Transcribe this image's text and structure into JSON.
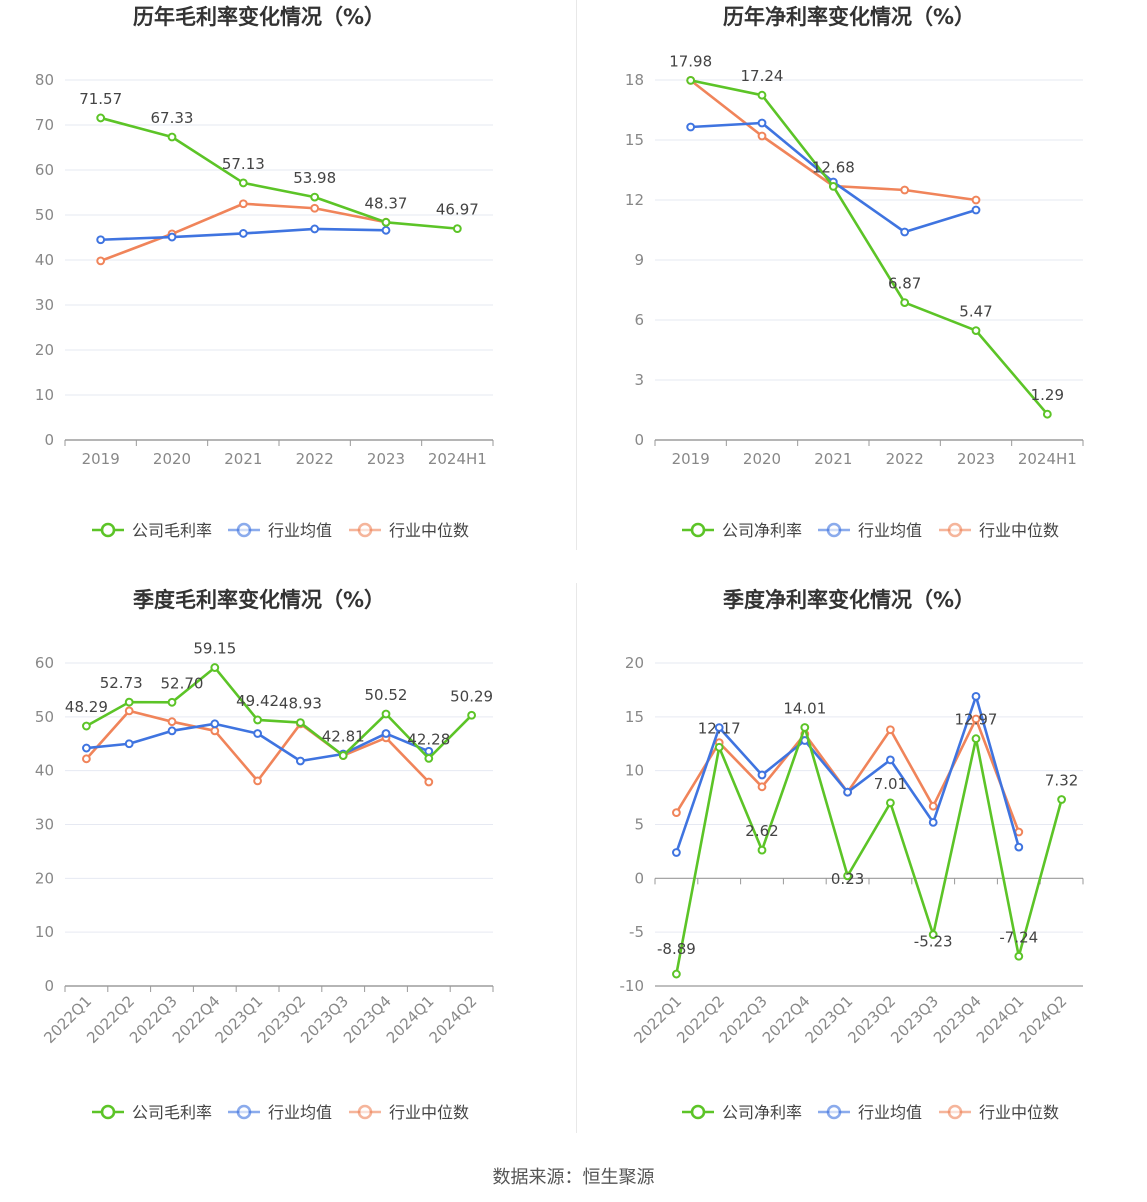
{
  "colors": {
    "company": "#5cc427",
    "avg": "#3f74e0",
    "median": "#f0845a",
    "grid": "#e6e9f2",
    "axis": "#888888",
    "label": "#444444"
  },
  "source_text": "数据来源：恒生聚源",
  "charts": [
    {
      "type": "line",
      "title": "历年毛利率变化情况（%）",
      "categories": [
        "2019",
        "2020",
        "2021",
        "2022",
        "2023",
        "2024H1"
      ],
      "ylim": [
        0,
        80
      ],
      "yticks": [
        "0",
        "10",
        "20",
        "30",
        "40",
        "50",
        "60",
        "70",
        "80"
      ],
      "rotate_x": false,
      "zero_ticks": false,
      "series": [
        {
          "name": "公司毛利率",
          "color": "#5cc427",
          "labels": true,
          "values": [
            71.57,
            67.33,
            57.13,
            53.98,
            48.37,
            46.97
          ]
        },
        {
          "name": "行业均值",
          "color": "#3f74e0",
          "labels": false,
          "values": [
            44.5,
            45.1,
            45.9,
            46.9,
            46.6,
            null
          ]
        },
        {
          "name": "行业中位数",
          "color": "#f0845a",
          "labels": false,
          "values": [
            39.8,
            45.8,
            52.5,
            51.5,
            48.4,
            null
          ]
        }
      ],
      "value_labels": [
        "71.57",
        "67.33",
        "57.13",
        "53.98",
        "48.37",
        "46.97"
      ]
    },
    {
      "type": "line",
      "title": "历年净利率变化情况（%）",
      "categories": [
        "2019",
        "2020",
        "2021",
        "2022",
        "2023",
        "2024H1"
      ],
      "ylim": [
        0,
        18
      ],
      "yticks": [
        "0",
        "3",
        "6",
        "9",
        "12",
        "15",
        "18"
      ],
      "rotate_x": false,
      "zero_ticks": false,
      "series": [
        {
          "name": "公司净利率",
          "color": "#5cc427",
          "labels": true,
          "values": [
            17.98,
            17.24,
            12.68,
            6.87,
            5.47,
            1.29
          ]
        },
        {
          "name": "行业均值",
          "color": "#3f74e0",
          "labels": false,
          "values": [
            15.65,
            15.85,
            12.9,
            10.4,
            11.5,
            null
          ]
        },
        {
          "name": "行业中位数",
          "color": "#f0845a",
          "labels": false,
          "values": [
            17.98,
            15.2,
            12.7,
            12.5,
            12.0,
            null
          ]
        }
      ],
      "value_labels": [
        "17.98",
        "17.24",
        "12.68",
        "6.87",
        "5.47",
        "1.29"
      ]
    },
    {
      "type": "line",
      "title": "季度毛利率变化情况（%）",
      "categories": [
        "2022Q1",
        "2022Q2",
        "2022Q3",
        "2022Q4",
        "2023Q1",
        "2023Q2",
        "2023Q3",
        "2023Q4",
        "2024Q1",
        "2024Q2"
      ],
      "ylim": [
        0,
        60
      ],
      "yticks": [
        "0",
        "10",
        "20",
        "30",
        "40",
        "50",
        "60"
      ],
      "rotate_x": true,
      "zero_ticks": false,
      "series": [
        {
          "name": "公司毛利率",
          "color": "#5cc427",
          "labels": true,
          "values": [
            48.29,
            52.73,
            52.7,
            59.15,
            49.42,
            48.93,
            42.81,
            50.52,
            42.28,
            50.29
          ]
        },
        {
          "name": "行业均值",
          "color": "#3f74e0",
          "labels": false,
          "values": [
            44.2,
            45.0,
            47.4,
            48.7,
            46.9,
            41.8,
            43.1,
            46.9,
            43.6,
            null
          ]
        },
        {
          "name": "行业中位数",
          "color": "#f0845a",
          "labels": false,
          "values": [
            42.2,
            51.1,
            49.1,
            47.4,
            38.1,
            48.7,
            42.8,
            46.1,
            37.9,
            null
          ]
        }
      ],
      "value_labels": [
        "48.29",
        "52.73",
        "52.70",
        "59.15",
        "49.42",
        "48.93",
        "42.81",
        "50.52",
        "42.28",
        "50.29"
      ]
    },
    {
      "type": "line",
      "title": "季度净利率变化情况（%）",
      "categories": [
        "2022Q1",
        "2022Q2",
        "2022Q3",
        "2022Q4",
        "2023Q1",
        "2023Q2",
        "2023Q3",
        "2023Q4",
        "2024Q1",
        "2024Q2"
      ],
      "ylim": [
        -10,
        20
      ],
      "yticks": [
        "-10",
        "-5",
        "0",
        "5",
        "10",
        "15",
        "20"
      ],
      "rotate_x": true,
      "zero_ticks": true,
      "series": [
        {
          "name": "公司净利率",
          "color": "#5cc427",
          "labels": true,
          "values": [
            -8.89,
            12.17,
            2.62,
            14.01,
            0.23,
            7.01,
            -5.23,
            12.97,
            -7.24,
            7.32
          ]
        },
        {
          "name": "行业均值",
          "color": "#3f74e0",
          "labels": false,
          "values": [
            2.4,
            14.0,
            9.6,
            12.8,
            8.0,
            11.0,
            5.2,
            16.9,
            2.9,
            null
          ]
        },
        {
          "name": "行业中位数",
          "color": "#f0845a",
          "labels": false,
          "values": [
            6.1,
            12.6,
            8.5,
            13.4,
            8.0,
            13.8,
            6.7,
            14.8,
            4.3,
            null
          ]
        }
      ],
      "value_labels": [
        "-8.89",
        "12.17",
        "2.62",
        "14.01",
        "0.23",
        "7.01",
        "-5.23",
        "12.97",
        "-7.24",
        "7.32"
      ]
    }
  ]
}
